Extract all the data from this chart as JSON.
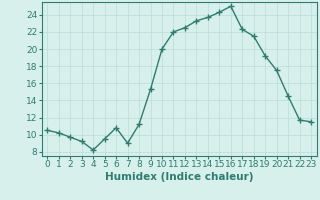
{
  "x": [
    0,
    1,
    2,
    3,
    4,
    5,
    6,
    7,
    8,
    9,
    10,
    11,
    12,
    13,
    14,
    15,
    16,
    17,
    18,
    19,
    20,
    21,
    22,
    23
  ],
  "y": [
    10.5,
    10.2,
    9.7,
    9.2,
    8.2,
    9.5,
    10.8,
    9.0,
    11.2,
    15.3,
    20.0,
    22.0,
    22.5,
    23.3,
    23.7,
    24.3,
    25.0,
    22.3,
    21.5,
    19.2,
    17.5,
    14.5,
    11.7,
    11.5
  ],
  "line_color": "#2d7d70",
  "marker": "+",
  "marker_size": 4,
  "marker_lw": 1.0,
  "line_width": 1.0,
  "bg_color": "#d8f0ec",
  "grid_color": "#b8ddd8",
  "grid_lw": 0.5,
  "xlabel": "Humidex (Indice chaleur)",
  "ylabel_ticks": [
    8,
    10,
    12,
    14,
    16,
    18,
    20,
    22,
    24
  ],
  "ylim": [
    7.5,
    25.5
  ],
  "xlim": [
    -0.5,
    23.5
  ],
  "xlabel_fontsize": 7.5,
  "tick_fontsize": 6.5,
  "spine_color": "#2d7d70"
}
